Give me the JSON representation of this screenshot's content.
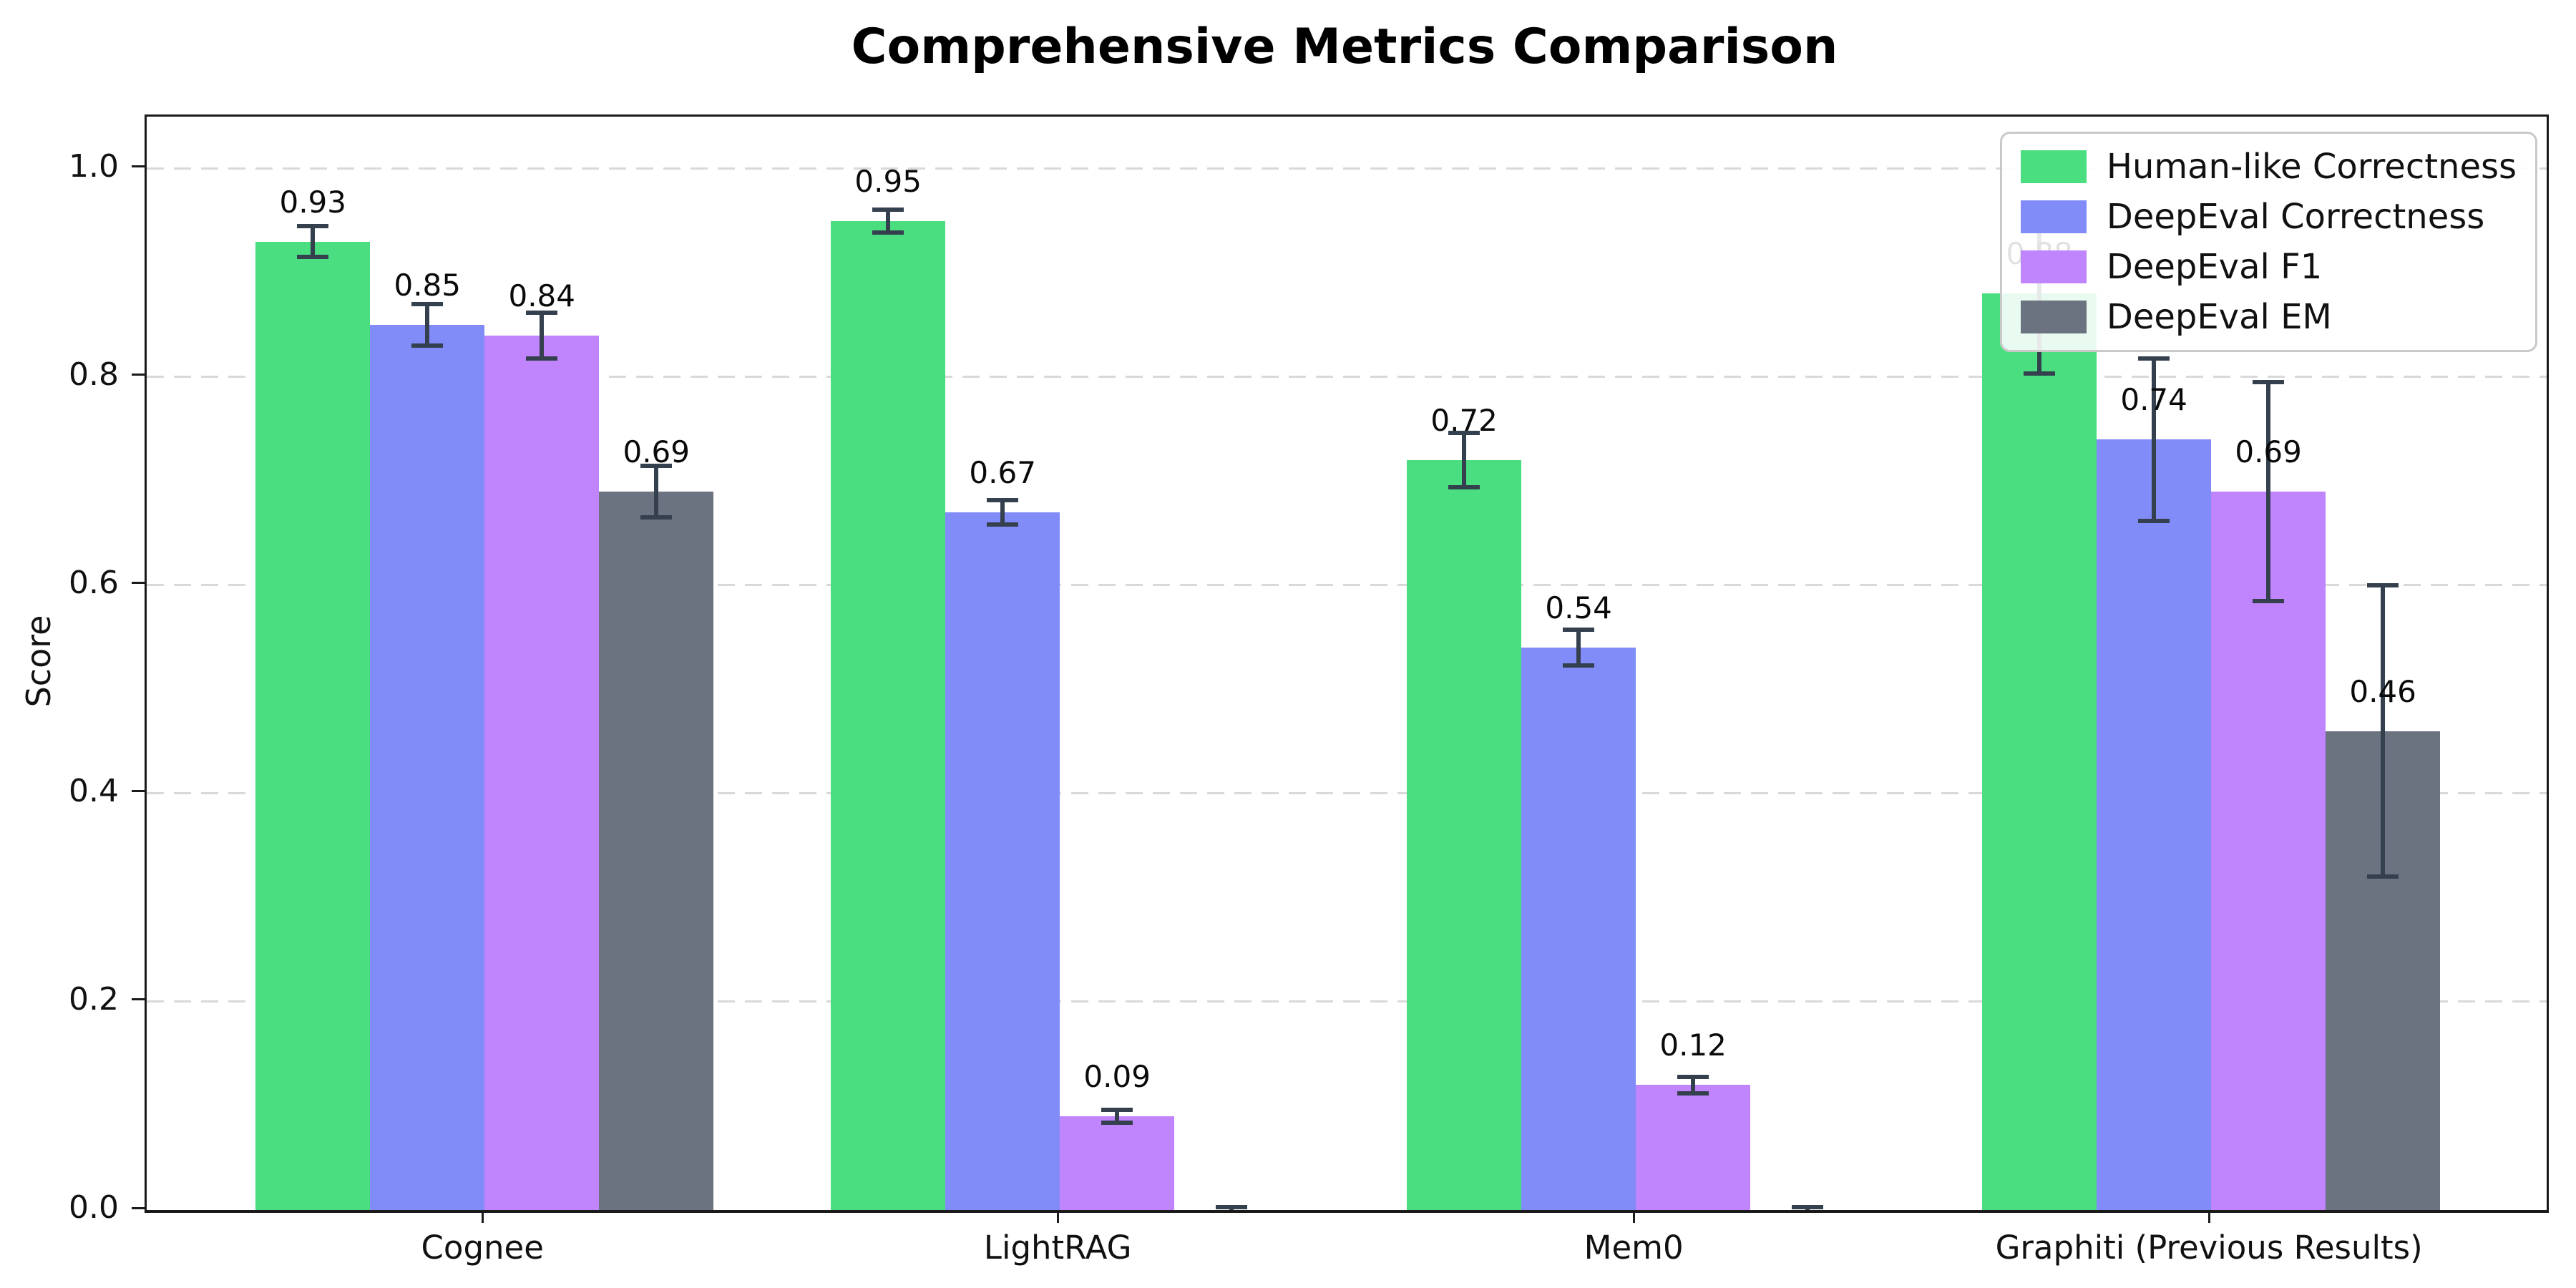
{
  "figure": {
    "title": "Comprehensive Metrics Comparison"
  },
  "chart_data": {
    "type": "bar",
    "title": "Comprehensive Metrics Comparison",
    "xlabel": "",
    "ylabel": "Score",
    "categories": [
      "Cognee",
      "LightRAG",
      "Mem0",
      "Graphiti (Previous Results)"
    ],
    "series": [
      {
        "name": "Human-like Correctness",
        "color": "#4ade80",
        "values": [
          0.93,
          0.95,
          0.72,
          0.88
        ],
        "errors": [
          0.015,
          0.011,
          0.026,
          0.077
        ],
        "labels": [
          "0.93",
          "0.95",
          "0.72",
          "0.88"
        ]
      },
      {
        "name": "DeepEval Correctness",
        "color": "#818cf8",
        "values": [
          0.85,
          0.67,
          0.54,
          0.74
        ],
        "errors": [
          0.02,
          0.012,
          0.017,
          0.078
        ],
        "labels": [
          "0.85",
          "0.67",
          "0.54",
          "0.74"
        ]
      },
      {
        "name": "DeepEval F1",
        "color": "#c084fc",
        "values": [
          0.84,
          0.09,
          0.12,
          0.69
        ],
        "errors": [
          0.022,
          0.006,
          0.008,
          0.105
        ],
        "labels": [
          "0.84",
          "0.09",
          "0.12",
          "0.69"
        ]
      },
      {
        "name": "DeepEval EM",
        "color": "#6b7280",
        "values": [
          0.69,
          0.0,
          0.0,
          0.46
        ],
        "errors": [
          0.025,
          0.003,
          0.003,
          0.14
        ],
        "labels": [
          "0.69",
          null,
          null,
          "0.46"
        ]
      }
    ],
    "yticks": [
      "0.0",
      "0.2",
      "0.4",
      "0.6",
      "0.8",
      "1.0"
    ],
    "ylim": [
      0,
      1.05
    ],
    "grid": {
      "axis": "y",
      "style": "dashed",
      "color": "#d9d9d9"
    },
    "legend_position": "upper right",
    "error_bar_color": "#35404f"
  }
}
